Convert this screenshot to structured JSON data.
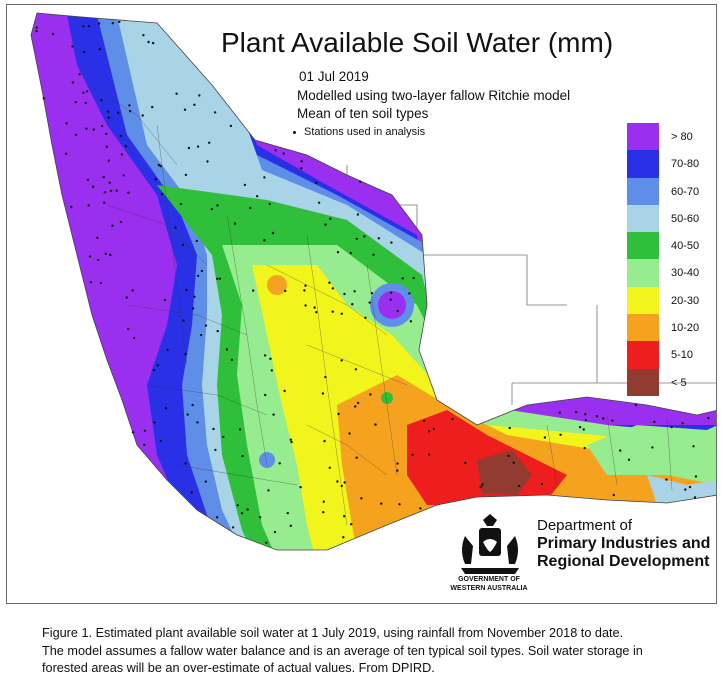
{
  "map": {
    "title": "Plant Available Soil Water (mm)",
    "subtitle_lines": [
      "01 Jul 2019",
      "Modelled using two-layer fallow Ritchie model",
      "Mean of ten soil types"
    ],
    "stations_label": "Stations used in analysis",
    "legend": [
      {
        "label": "> 80",
        "color": "#9a2ff0"
      },
      {
        "label": "70-80",
        "color": "#2a30e6"
      },
      {
        "label": "60-70",
        "color": "#5f8ee8"
      },
      {
        "label": "50-60",
        "color": "#a9d3e6"
      },
      {
        "label": "40-50",
        "color": "#2fbf3a"
      },
      {
        "label": "30-40",
        "color": "#96ec8f"
      },
      {
        "label": "20-30",
        "color": "#f2f51c"
      },
      {
        "label": "10-20",
        "color": "#f5a31f"
      },
      {
        "label": "5-10",
        "color": "#ee1e1e"
      },
      {
        "label": "< 5",
        "color": "#923b30"
      }
    ]
  },
  "department": {
    "line1": "Department of",
    "line2": "Primary Industries and",
    "line3": "Regional Development",
    "gov_line1": "GOVERNMENT OF",
    "gov_line2": "WESTERN AUSTRALIA"
  },
  "caption": {
    "line1": "Figure 1. Estimated plant available soil water at 1 July 2019, using rainfall from November 2018 to date.",
    "line2": "The model assumes a fallow water balance and is an average of ten typical soil types. Soil water storage in",
    "line3": "forested areas will be an over-estimate of actual values. From DPIRD."
  }
}
